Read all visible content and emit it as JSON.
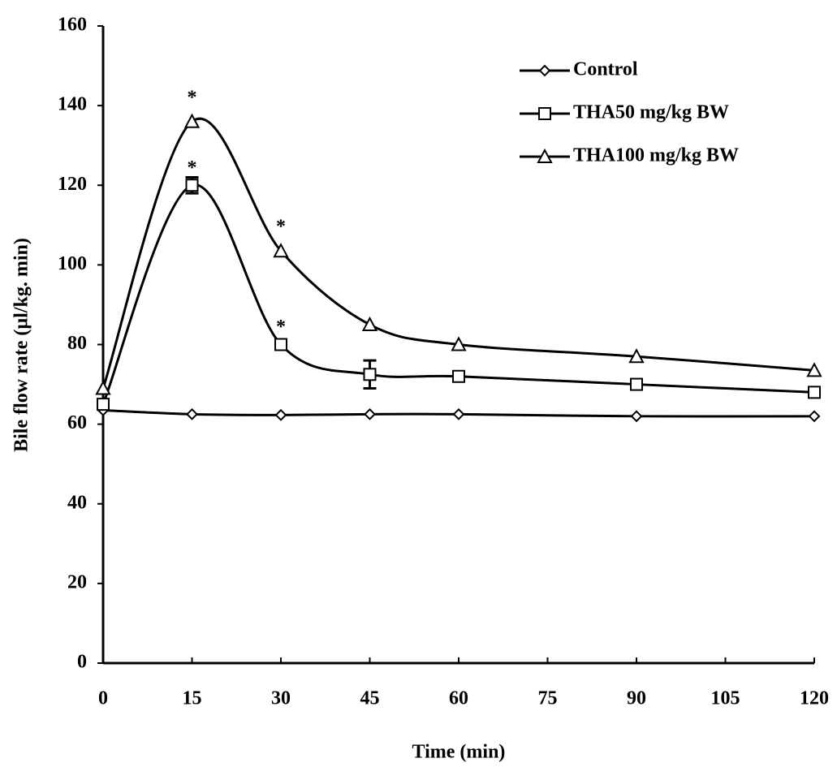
{
  "chart_data": {
    "type": "line",
    "x_label": "Time (min)",
    "y_label": "Bile flow rate (µl/kg. min)",
    "x": [
      0,
      15,
      30,
      45,
      60,
      90,
      120
    ],
    "xlim": [
      0,
      120
    ],
    "xticks": [
      0,
      15,
      30,
      45,
      60,
      75,
      90,
      105,
      120
    ],
    "ylim": [
      0,
      160
    ],
    "yticks": [
      0,
      20,
      40,
      60,
      80,
      100,
      120,
      140,
      160
    ],
    "grid": false,
    "smooth": true,
    "legend": "upper right",
    "series": [
      {
        "name": "Control",
        "color": "#000000",
        "marker": "diamond",
        "values": [
          63.5,
          62.5,
          62.3,
          62.5,
          62.5,
          62,
          62
        ],
        "annotations": [
          null,
          null,
          null,
          null,
          null,
          null,
          null
        ]
      },
      {
        "name": "THA50 mg/kg BW",
        "color": "#000000",
        "marker": "square",
        "values": [
          65,
          120,
          80,
          72.5,
          72,
          70,
          68
        ],
        "errors": [
          null,
          2,
          null,
          3.5,
          null,
          null,
          null
        ],
        "annotations": [
          null,
          "*",
          "*",
          null,
          null,
          null,
          null
        ]
      },
      {
        "name": "THA100 mg/kg BW",
        "color": "#000000",
        "marker": "triangle",
        "values": [
          69,
          136,
          103.5,
          85,
          80,
          77,
          73.5
        ],
        "annotations": [
          null,
          "*",
          "*",
          null,
          null,
          null,
          null
        ]
      }
    ]
  }
}
